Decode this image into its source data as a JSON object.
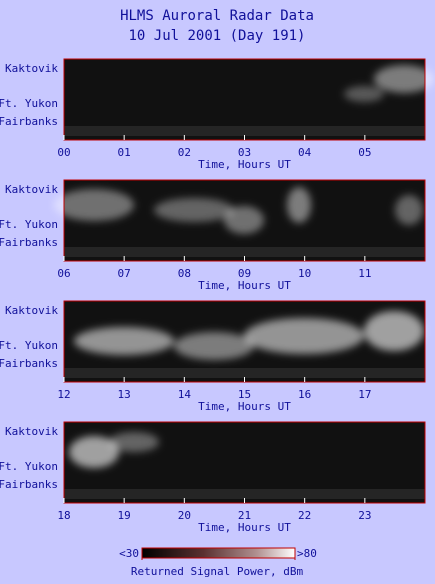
{
  "title": "HLMS Auroral Radar Data",
  "subtitle": "10 Jul 2001 (Day 191)",
  "chart_data": [
    {
      "type": "heatmap",
      "xlabel": "Time, Hours UT",
      "xlim": [
        0,
        6
      ],
      "xticks": [
        {
          "value": 0,
          "label": "00"
        },
        {
          "value": 1,
          "label": "01"
        },
        {
          "value": 2,
          "label": "02"
        },
        {
          "value": 3,
          "label": "03"
        },
        {
          "value": 4,
          "label": "04"
        },
        {
          "value": 5,
          "label": "05"
        }
      ],
      "y_labels": [
        "Kaktovik",
        "Ft. Yukon",
        "Fairbanks"
      ]
    },
    {
      "type": "heatmap",
      "xlabel": "Time, Hours UT",
      "xlim": [
        6,
        12
      ],
      "xticks": [
        {
          "value": 6,
          "label": "06"
        },
        {
          "value": 7,
          "label": "07"
        },
        {
          "value": 8,
          "label": "08"
        },
        {
          "value": 9,
          "label": "09"
        },
        10,
        11
      ],
      "y_labels": [
        "Kaktovik",
        "Ft. Yukon",
        "Fairbanks"
      ]
    },
    {
      "type": "heatmap",
      "xlabel": "Time, Hours UT",
      "xlim": [
        12,
        18
      ],
      "xticks": [
        12,
        13,
        14,
        15,
        16,
        17
      ],
      "y_labels": [
        "Kaktovik",
        "Ft. Yukon",
        "Fairbanks"
      ]
    },
    {
      "type": "heatmap",
      "xlabel": "Time, Hours UT",
      "xlim": [
        18,
        24
      ],
      "xticks": [
        18,
        19,
        20,
        21,
        22,
        23
      ],
      "y_labels": [
        "Kaktovik",
        "Ft. Yukon",
        "Fairbanks"
      ]
    }
  ],
  "colorbar": {
    "label": "Returned Signal Power, dBm",
    "lim": [
      30,
      80
    ],
    "ticks": [
      {
        "value": 30,
        "label": "<30"
      },
      {
        "value": 80,
        "label": ">80"
      }
    ]
  }
}
